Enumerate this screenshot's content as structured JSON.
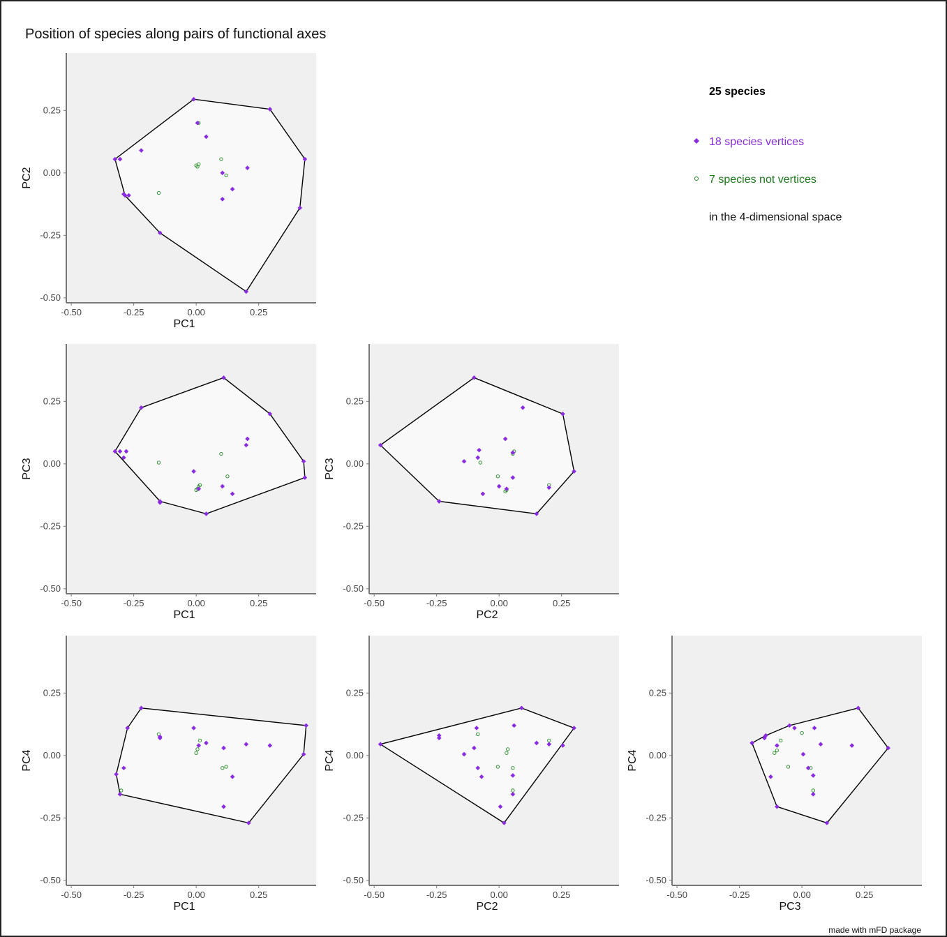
{
  "title": "Position of species along pairs of functional axes",
  "footer": "made with mFD package",
  "colors": {
    "vertices": "#8a2be2",
    "not_vertices": "#228b22",
    "panel_bg": "#f0f0f0",
    "hull_fill": "#f9f9f9",
    "hull_stroke": "#000000"
  },
  "legend": {
    "total": "25 species",
    "vertices": "18 species vertices",
    "not_vertices": "7 species not vertices",
    "space": "in the 4-dimensional space"
  },
  "chart_data": [
    {
      "type": "scatter",
      "xlabel": "PC1",
      "ylabel": "PC2",
      "xlim": [
        -0.52,
        0.48
      ],
      "ylim": [
        -0.52,
        0.48
      ],
      "xticks": [
        "-0.50",
        "-0.25",
        "0.00",
        "0.25"
      ],
      "yticks": [
        "-0.50",
        "-0.25",
        "0.00",
        "0.25"
      ],
      "hull": [
        [
          -0.01,
          0.295
        ],
        [
          0.295,
          0.255
        ],
        [
          0.435,
          0.055
        ],
        [
          0.415,
          -0.14
        ],
        [
          0.2,
          -0.475
        ],
        [
          -0.145,
          -0.24
        ],
        [
          -0.285,
          -0.09
        ],
        [
          -0.325,
          0.055
        ]
      ],
      "vertices": [
        [
          -0.01,
          0.295
        ],
        [
          0.295,
          0.255
        ],
        [
          0.435,
          0.055
        ],
        [
          0.415,
          -0.14
        ],
        [
          0.2,
          -0.475
        ],
        [
          -0.145,
          -0.24
        ],
        [
          -0.285,
          -0.09
        ],
        [
          -0.325,
          0.055
        ],
        [
          -0.305,
          0.055
        ],
        [
          -0.29,
          -0.085
        ],
        [
          -0.22,
          0.09
        ],
        [
          0.005,
          0.2
        ],
        [
          0.04,
          0.145
        ],
        [
          0.105,
          0.0
        ],
        [
          0.205,
          0.02
        ],
        [
          0.145,
          -0.065
        ],
        [
          0.105,
          -0.105
        ],
        [
          -0.27,
          -0.09
        ]
      ],
      "non_vertices": [
        [
          0.01,
          0.2
        ],
        [
          0.1,
          0.055
        ],
        [
          0.12,
          -0.01
        ],
        [
          0.01,
          0.035
        ],
        [
          0.0,
          0.03
        ],
        [
          -0.15,
          -0.08
        ],
        [
          0.005,
          0.025
        ]
      ]
    },
    {
      "type": "scatter",
      "xlabel": "PC1",
      "ylabel": "PC3",
      "xlim": [
        -0.52,
        0.48
      ],
      "ylim": [
        -0.52,
        0.48
      ],
      "xticks": [
        "-0.50",
        "-0.25",
        "0.00",
        "0.25"
      ],
      "yticks": [
        "-0.50",
        "-0.25",
        "0.00",
        "0.25"
      ],
      "hull": [
        [
          0.11,
          0.345
        ],
        [
          0.295,
          0.2
        ],
        [
          0.43,
          0.01
        ],
        [
          0.435,
          -0.055
        ],
        [
          0.04,
          -0.2
        ],
        [
          -0.145,
          -0.15
        ],
        [
          -0.325,
          0.05
        ],
        [
          -0.22,
          0.225
        ]
      ],
      "vertices": [
        [
          0.11,
          0.345
        ],
        [
          0.295,
          0.2
        ],
        [
          0.43,
          0.01
        ],
        [
          0.435,
          -0.055
        ],
        [
          0.04,
          -0.2
        ],
        [
          -0.145,
          -0.15
        ],
        [
          -0.325,
          0.05
        ],
        [
          -0.22,
          0.225
        ],
        [
          -0.305,
          0.05
        ],
        [
          -0.28,
          0.05
        ],
        [
          -0.29,
          0.025
        ],
        [
          0.205,
          0.1
        ],
        [
          0.2,
          0.075
        ],
        [
          -0.01,
          -0.03
        ],
        [
          0.105,
          -0.09
        ],
        [
          0.145,
          -0.12
        ],
        [
          0.01,
          -0.1
        ],
        [
          -0.145,
          -0.155
        ]
      ],
      "non_vertices": [
        [
          -0.15,
          0.005
        ],
        [
          0.1,
          0.04
        ],
        [
          0.125,
          -0.05
        ],
        [
          0.015,
          -0.085
        ],
        [
          0.005,
          -0.1
        ],
        [
          0.0,
          -0.105
        ],
        [
          0.01,
          -0.09
        ]
      ]
    },
    {
      "type": "scatter",
      "xlabel": "PC2",
      "ylabel": "PC3",
      "xlim": [
        -0.52,
        0.48
      ],
      "ylim": [
        -0.52,
        0.48
      ],
      "xticks": [
        "-0.50",
        "-0.25",
        "0.00",
        "0.25"
      ],
      "yticks": [
        "-0.50",
        "-0.25",
        "0.00",
        "0.25"
      ],
      "hull": [
        [
          -0.1,
          0.345
        ],
        [
          0.255,
          0.2
        ],
        [
          0.3,
          -0.03
        ],
        [
          0.15,
          -0.2
        ],
        [
          -0.24,
          -0.15
        ],
        [
          -0.475,
          0.075
        ]
      ],
      "vertices": [
        [
          -0.1,
          0.345
        ],
        [
          0.255,
          0.2
        ],
        [
          0.3,
          -0.03
        ],
        [
          0.15,
          -0.2
        ],
        [
          -0.24,
          -0.15
        ],
        [
          -0.475,
          0.075
        ],
        [
          0.095,
          0.225
        ],
        [
          -0.08,
          0.055
        ],
        [
          -0.085,
          0.025
        ],
        [
          0.025,
          0.1
        ],
        [
          0.055,
          0.045
        ],
        [
          -0.14,
          0.01
        ],
        [
          0.055,
          -0.055
        ],
        [
          0.0,
          -0.09
        ],
        [
          -0.065,
          -0.12
        ],
        [
          0.2,
          -0.095
        ],
        [
          0.03,
          -0.1
        ],
        [
          -0.24,
          -0.15
        ]
      ],
      "non_vertices": [
        [
          -0.075,
          0.005
        ],
        [
          0.055,
          0.04
        ],
        [
          -0.005,
          -0.05
        ],
        [
          0.025,
          -0.11
        ],
        [
          0.03,
          -0.105
        ],
        [
          0.2,
          -0.085
        ],
        [
          0.06,
          0.05
        ]
      ]
    },
    {
      "type": "scatter",
      "xlabel": "PC1",
      "ylabel": "PC4",
      "xlim": [
        -0.52,
        0.48
      ],
      "ylim": [
        -0.52,
        0.48
      ],
      "xticks": [
        "-0.50",
        "-0.25",
        "0.00",
        "0.25"
      ],
      "yticks": [
        "-0.50",
        "-0.25",
        "0.00",
        "0.25"
      ],
      "hull": [
        [
          -0.22,
          0.19
        ],
        [
          0.44,
          0.12
        ],
        [
          0.43,
          0.005
        ],
        [
          0.21,
          -0.27
        ],
        [
          -0.305,
          -0.155
        ],
        [
          -0.32,
          -0.075
        ],
        [
          -0.275,
          0.11
        ]
      ],
      "vertices": [
        [
          -0.22,
          0.19
        ],
        [
          0.44,
          0.12
        ],
        [
          0.43,
          0.005
        ],
        [
          0.21,
          -0.27
        ],
        [
          -0.305,
          -0.155
        ],
        [
          -0.32,
          -0.075
        ],
        [
          -0.275,
          0.11
        ],
        [
          -0.29,
          -0.05
        ],
        [
          -0.145,
          0.075
        ],
        [
          -0.145,
          0.07
        ],
        [
          -0.01,
          0.11
        ],
        [
          0.01,
          0.04
        ],
        [
          0.04,
          0.05
        ],
        [
          0.11,
          0.03
        ],
        [
          0.2,
          0.045
        ],
        [
          0.295,
          0.04
        ],
        [
          0.145,
          -0.085
        ],
        [
          0.11,
          -0.205
        ]
      ],
      "non_vertices": [
        [
          -0.15,
          0.085
        ],
        [
          0.015,
          0.06
        ],
        [
          0.005,
          0.025
        ],
        [
          0.0,
          0.01
        ],
        [
          0.105,
          -0.05
        ],
        [
          0.12,
          -0.045
        ],
        [
          -0.3,
          -0.14
        ]
      ]
    },
    {
      "type": "scatter",
      "xlabel": "PC2",
      "ylabel": "PC4",
      "xlim": [
        -0.52,
        0.48
      ],
      "ylim": [
        -0.52,
        0.48
      ],
      "xticks": [
        "-0.50",
        "-0.25",
        "0.00",
        "0.25"
      ],
      "yticks": [
        "-0.50",
        "-0.25",
        "0.00",
        "0.25"
      ],
      "hull": [
        [
          0.09,
          0.19
        ],
        [
          0.3,
          0.11
        ],
        [
          0.02,
          -0.27
        ],
        [
          -0.475,
          0.045
        ]
      ],
      "vertices": [
        [
          0.09,
          0.19
        ],
        [
          0.3,
          0.11
        ],
        [
          0.02,
          -0.27
        ],
        [
          -0.475,
          0.045
        ],
        [
          -0.24,
          0.08
        ],
        [
          -0.24,
          0.07
        ],
        [
          -0.09,
          0.11
        ],
        [
          0.06,
          0.12
        ],
        [
          -0.1,
          0.03
        ],
        [
          -0.14,
          0.005
        ],
        [
          -0.085,
          -0.05
        ],
        [
          -0.07,
          -0.085
        ],
        [
          0.055,
          -0.08
        ],
        [
          0.15,
          0.05
        ],
        [
          0.2,
          0.045
        ],
        [
          0.255,
          0.04
        ],
        [
          0.055,
          -0.155
        ],
        [
          0.005,
          -0.205
        ]
      ],
      "non_vertices": [
        [
          -0.085,
          0.085
        ],
        [
          0.035,
          0.025
        ],
        [
          0.03,
          0.01
        ],
        [
          -0.005,
          -0.045
        ],
        [
          0.055,
          -0.05
        ],
        [
          0.055,
          -0.14
        ],
        [
          0.2,
          0.06
        ]
      ]
    },
    {
      "type": "scatter",
      "xlabel": "PC3",
      "ylabel": "PC4",
      "xlim": [
        -0.52,
        0.48
      ],
      "ylim": [
        -0.52,
        0.48
      ],
      "xticks": [
        "-0.50",
        "-0.25",
        "0.00",
        "0.25"
      ],
      "yticks": [
        "-0.50",
        "-0.25",
        "0.00",
        "0.25"
      ],
      "hull": [
        [
          0.225,
          0.19
        ],
        [
          0.345,
          0.03
        ],
        [
          0.1,
          -0.27
        ],
        [
          -0.1,
          -0.205
        ],
        [
          -0.2,
          0.05
        ],
        [
          -0.145,
          0.08
        ],
        [
          -0.05,
          0.12
        ]
      ],
      "vertices": [
        [
          0.225,
          0.19
        ],
        [
          0.345,
          0.03
        ],
        [
          0.1,
          -0.27
        ],
        [
          -0.1,
          -0.205
        ],
        [
          -0.2,
          0.05
        ],
        [
          -0.145,
          0.08
        ],
        [
          -0.05,
          0.12
        ],
        [
          -0.15,
          0.07
        ],
        [
          -0.03,
          0.11
        ],
        [
          0.05,
          0.11
        ],
        [
          -0.1,
          0.04
        ],
        [
          0.075,
          0.045
        ],
        [
          0.2,
          0.04
        ],
        [
          0.005,
          0.005
        ],
        [
          0.025,
          -0.05
        ],
        [
          0.045,
          -0.08
        ],
        [
          -0.125,
          -0.085
        ],
        [
          0.045,
          -0.155
        ]
      ],
      "non_vertices": [
        [
          -0.085,
          0.06
        ],
        [
          0.0,
          0.09
        ],
        [
          -0.1,
          0.02
        ],
        [
          -0.11,
          0.01
        ],
        [
          -0.055,
          -0.045
        ],
        [
          0.035,
          -0.05
        ],
        [
          0.045,
          -0.14
        ]
      ]
    }
  ]
}
